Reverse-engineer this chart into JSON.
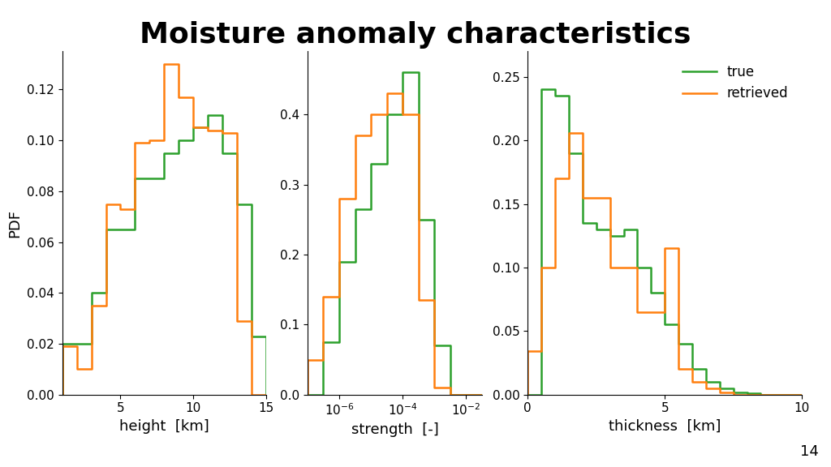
{
  "title": "Moisture anomaly characteristics",
  "title_fontsize": 26,
  "title_fontweight": "bold",
  "colors": {
    "true": "#2ca02c",
    "retrieved": "#ff7f0e"
  },
  "ylabel": "PDF",
  "background_color": "#ffffff",
  "footer_color": "#8ecece",
  "page_number": "14",
  "height": {
    "xlabel": "height  [km]",
    "xlim": [
      1,
      15
    ],
    "ylim": [
      0,
      0.135
    ],
    "yticks": [
      0.0,
      0.02,
      0.04,
      0.06,
      0.08,
      0.1,
      0.12
    ],
    "xticks": [
      5,
      10,
      15
    ],
    "true_bins": [
      1,
      2,
      3,
      4,
      5,
      6,
      7,
      8,
      9,
      10,
      11,
      12,
      13,
      14,
      15
    ],
    "true_vals": [
      0.02,
      0.02,
      0.04,
      0.065,
      0.065,
      0.085,
      0.085,
      0.095,
      0.1,
      0.105,
      0.11,
      0.095,
      0.075,
      0.023
    ],
    "ret_bins": [
      1,
      2,
      3,
      4,
      5,
      6,
      7,
      8,
      9,
      10,
      11,
      12,
      13,
      14,
      15
    ],
    "ret_vals": [
      0.019,
      0.01,
      0.035,
      0.075,
      0.073,
      0.099,
      0.1,
      0.13,
      0.117,
      0.105,
      0.104,
      0.103,
      0.029,
      0.0
    ]
  },
  "strength": {
    "xlabel": "strength  [-]",
    "xlim_log": [
      -7.0,
      -1.5
    ],
    "ylim": [
      0,
      0.49
    ],
    "yticks": [
      0.0,
      0.1,
      0.2,
      0.3,
      0.4
    ],
    "xticks_log": [
      -6,
      -4,
      -2
    ],
    "true_bins_log": [
      -7.0,
      -6.5,
      -6.0,
      -5.5,
      -5.0,
      -4.5,
      -4.0,
      -3.5,
      -3.0,
      -2.5,
      -2.0,
      -1.5
    ],
    "true_vals": [
      0.0,
      0.075,
      0.19,
      0.265,
      0.33,
      0.4,
      0.46,
      0.25,
      0.07,
      0.0,
      0.0
    ],
    "ret_bins_log": [
      -7.0,
      -6.5,
      -6.0,
      -5.5,
      -5.0,
      -4.5,
      -4.0,
      -3.5,
      -3.0,
      -2.5,
      -2.0,
      -1.5
    ],
    "ret_vals": [
      0.05,
      0.14,
      0.28,
      0.37,
      0.4,
      0.43,
      0.4,
      0.135,
      0.01,
      0.0,
      0.0
    ]
  },
  "thickness": {
    "xlabel": "thickness  [km]",
    "xlim": [
      0,
      10
    ],
    "ylim": [
      0,
      0.27
    ],
    "yticks": [
      0.0,
      0.05,
      0.1,
      0.15,
      0.2,
      0.25
    ],
    "xticks": [
      0,
      5,
      10
    ],
    "true_bins": [
      0,
      0.5,
      1.0,
      1.5,
      2.0,
      2.5,
      3.0,
      3.5,
      4.0,
      4.5,
      5.0,
      5.5,
      6.0,
      6.5,
      7.0,
      7.5,
      8.0,
      8.5,
      9.0,
      9.5,
      10.0
    ],
    "true_vals": [
      0.0,
      0.24,
      0.235,
      0.19,
      0.135,
      0.13,
      0.125,
      0.13,
      0.1,
      0.08,
      0.055,
      0.04,
      0.02,
      0.01,
      0.005,
      0.002,
      0.001,
      0.0,
      0.0,
      0.0
    ],
    "ret_bins": [
      0,
      0.5,
      1.0,
      1.5,
      2.0,
      2.5,
      3.0,
      3.5,
      4.0,
      4.5,
      5.0,
      5.5,
      6.0,
      6.5,
      7.0,
      7.5,
      8.0,
      8.5,
      9.0,
      9.5,
      10.0
    ],
    "ret_vals": [
      0.034,
      0.1,
      0.17,
      0.206,
      0.155,
      0.155,
      0.1,
      0.1,
      0.065,
      0.065,
      0.115,
      0.02,
      0.01,
      0.005,
      0.002,
      0.0,
      0.0,
      0.0,
      0.0,
      0.0
    ]
  }
}
